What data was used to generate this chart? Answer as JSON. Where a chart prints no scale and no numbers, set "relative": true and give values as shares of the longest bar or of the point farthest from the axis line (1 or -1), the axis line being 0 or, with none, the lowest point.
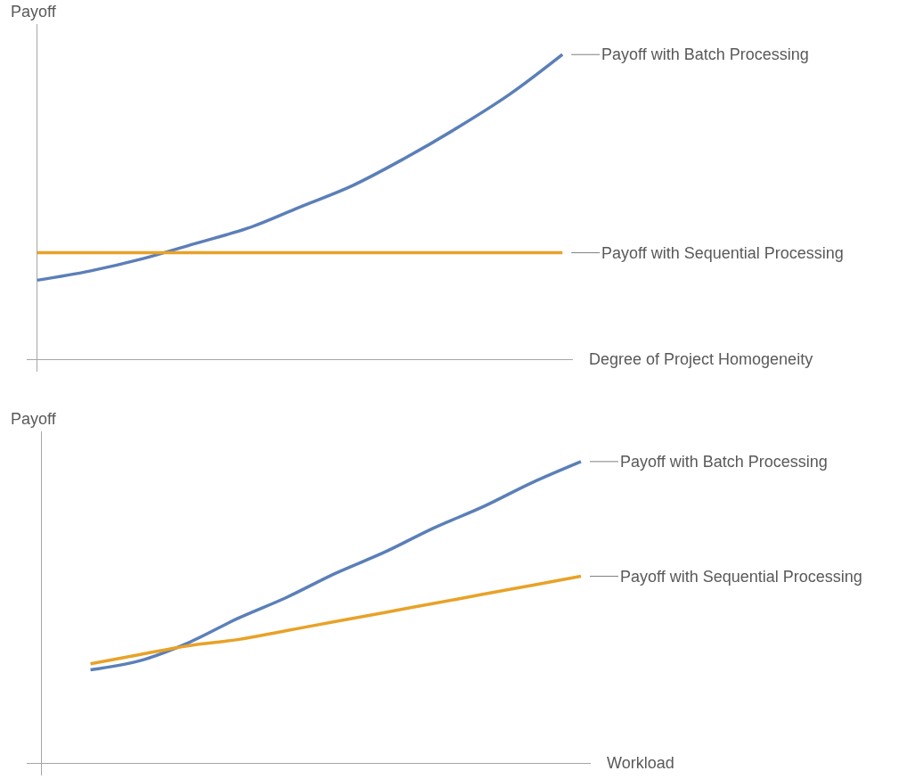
{
  "chart_data": [
    {
      "type": "line",
      "relative": true,
      "ylabel": "Payoff",
      "xlabel": "Degree of Project Homogeneity",
      "marker": "none",
      "line_style": "solid",
      "legend": false,
      "categories": [
        null,
        null,
        null,
        null,
        null,
        null,
        null,
        null,
        null,
        null,
        null
      ],
      "series": [
        {
          "name": "Payoff with Batch Processing",
          "color": "#5b7fb8",
          "values": [
            0.26,
            0.29,
            0.33,
            0.38,
            0.43,
            0.5,
            0.57,
            0.66,
            0.76,
            0.87,
            1.0
          ]
        },
        {
          "name": "Payoff with Sequential Processing",
          "color": "#e8a228",
          "values": [
            0.35,
            0.35,
            0.35,
            0.35,
            0.35,
            0.35,
            0.35,
            0.35,
            0.35,
            0.35,
            0.35
          ]
        }
      ]
    },
    {
      "type": "line",
      "relative": true,
      "ylabel": "Payoff",
      "xlabel": "Workload",
      "marker": "none",
      "line_style": "solid",
      "legend": false,
      "categories": [
        null,
        null,
        null,
        null,
        null,
        null,
        null,
        null,
        null,
        null,
        null,
        null
      ],
      "series": [
        {
          "name": "Payoff with Batch Processing",
          "color": "#5b7fb8",
          "values": [
            null,
            0.31,
            0.34,
            0.4,
            0.48,
            0.55,
            0.63,
            0.7,
            0.78,
            0.85,
            0.93,
            1.0
          ]
        },
        {
          "name": "Payoff with Sequential Processing",
          "color": "#e8a228",
          "values": [
            null,
            0.33,
            0.36,
            0.39,
            0.41,
            0.44,
            0.47,
            0.5,
            0.53,
            0.56,
            0.59,
            0.62
          ]
        }
      ]
    }
  ]
}
